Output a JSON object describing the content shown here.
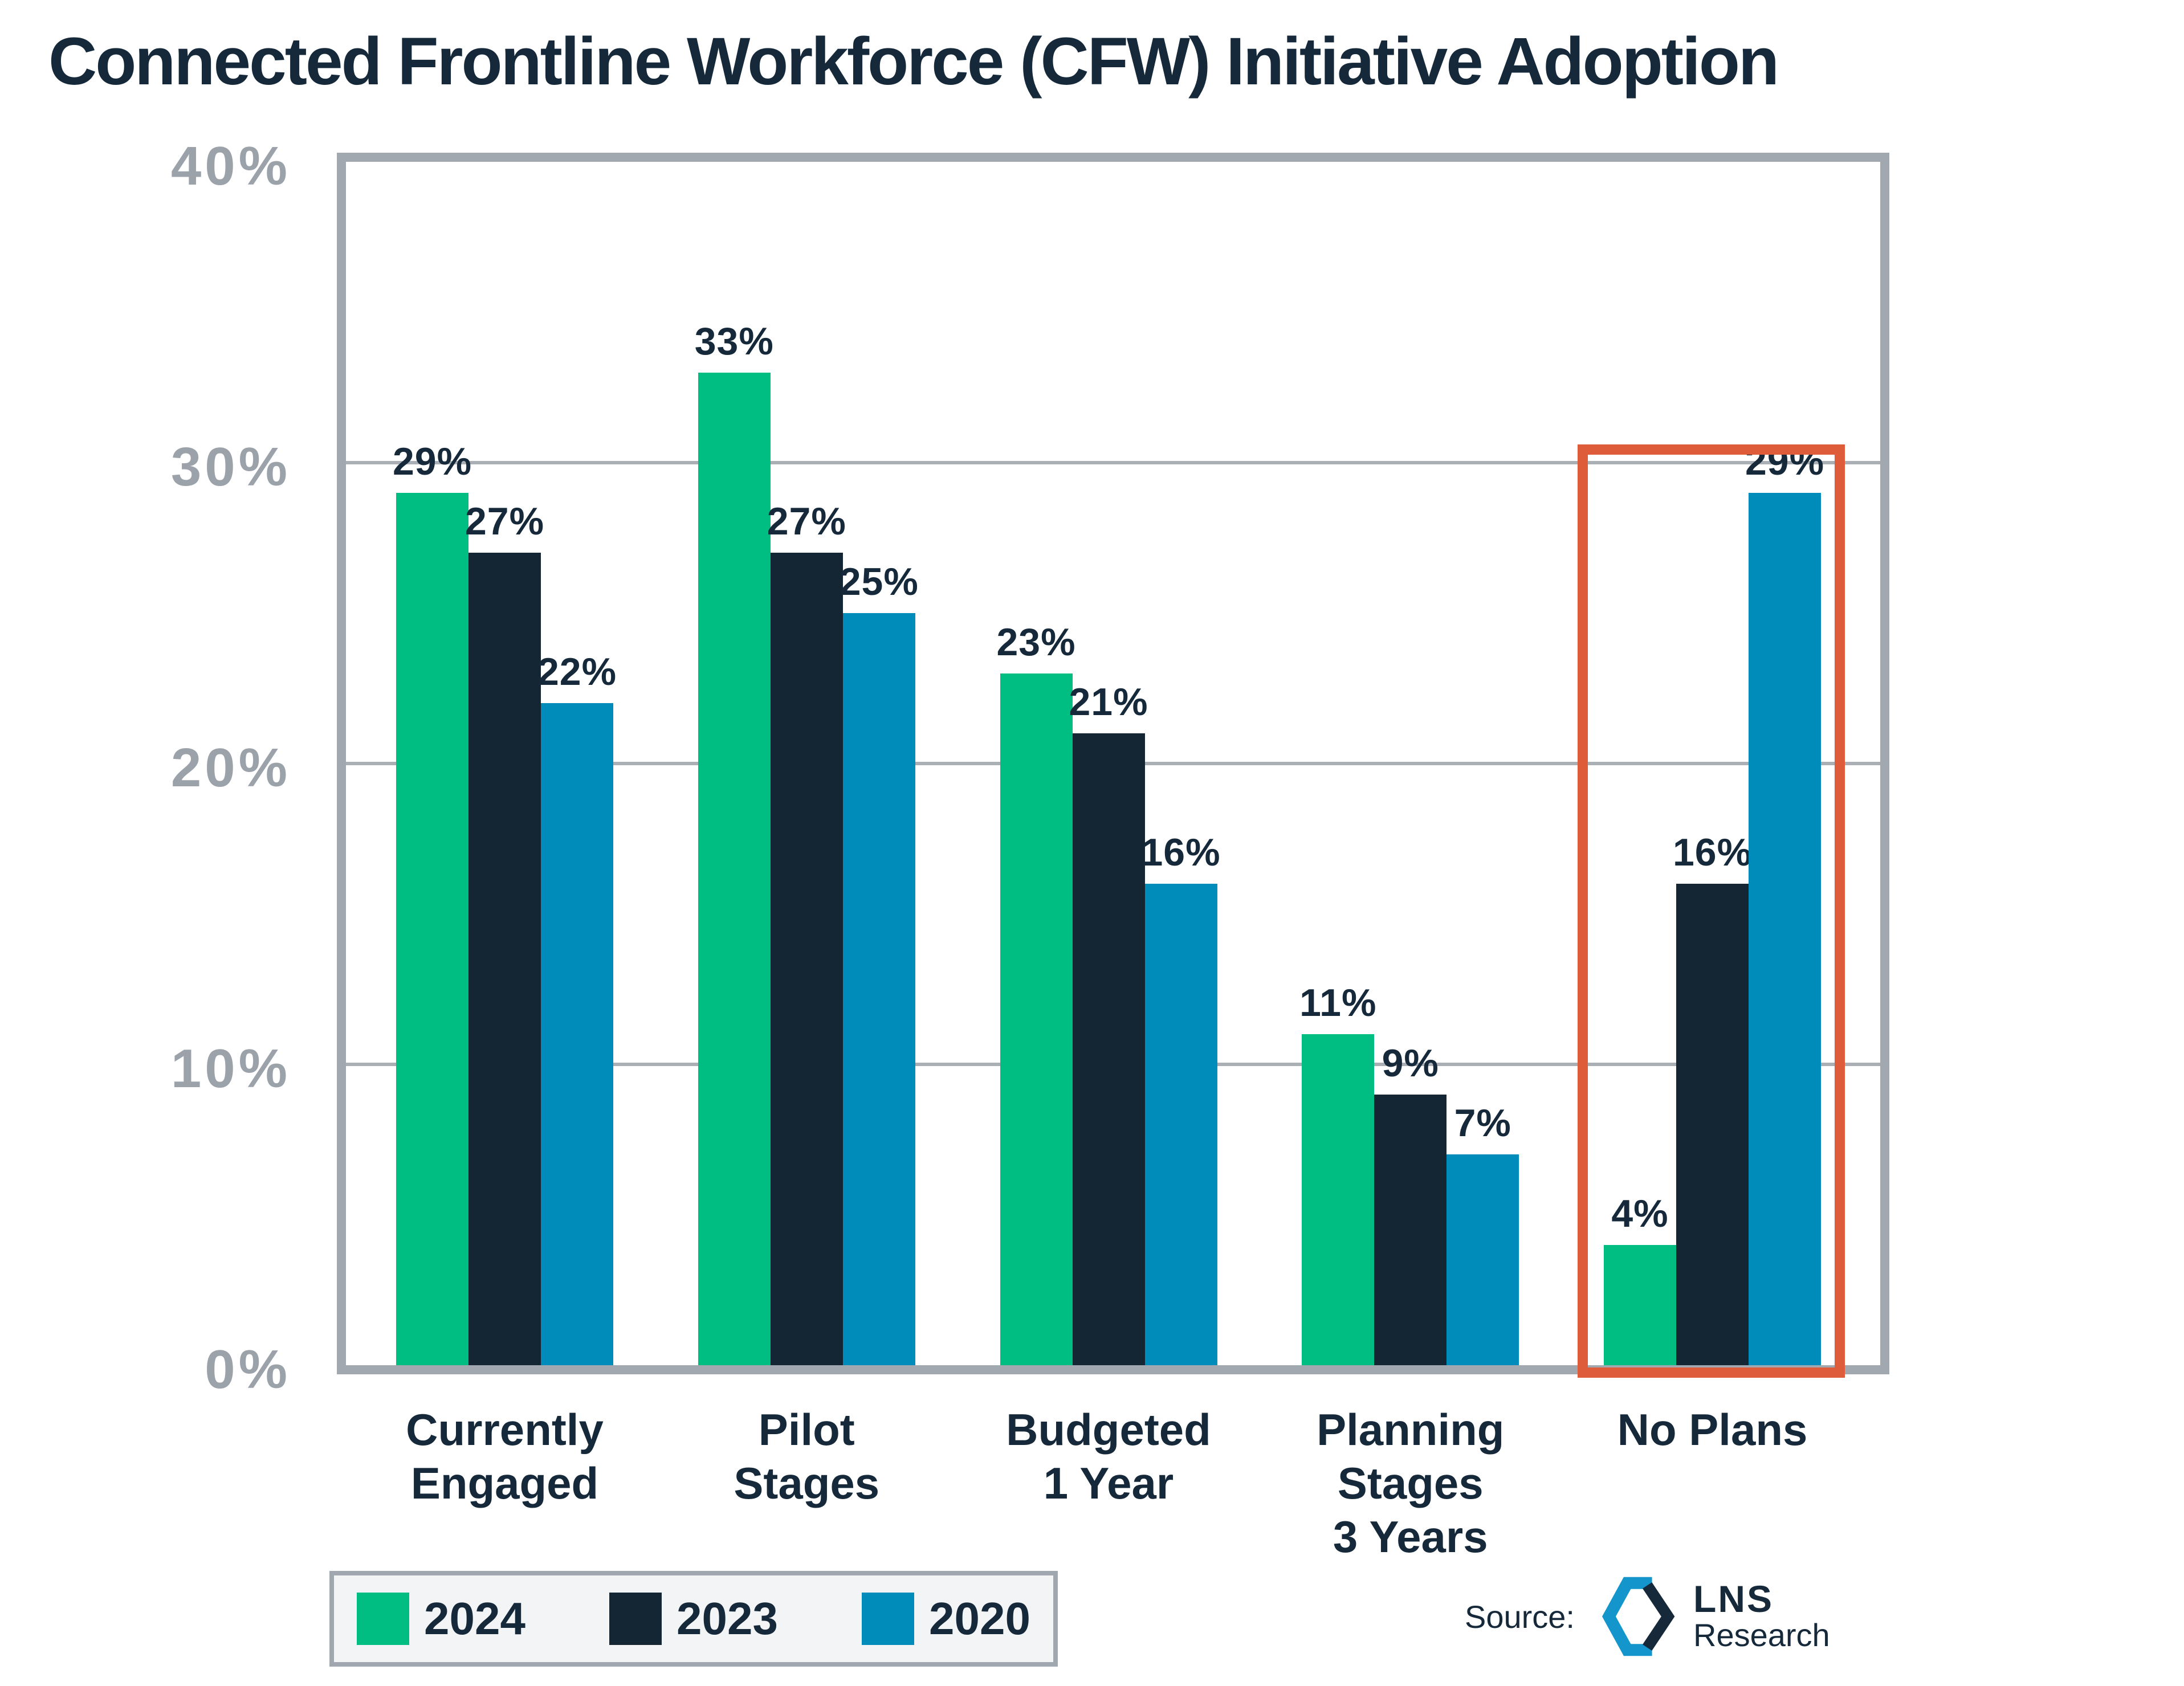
{
  "page": {
    "title": "Connected Frontline Workforce (CFW) Initiative Adoption"
  },
  "chart_data": {
    "type": "bar",
    "title": "Connected Frontline Workforce (CFW) Initiative Adoption",
    "categories": [
      "Currently Engaged",
      "Pilot Stages",
      "Budgeted 1 Year",
      "Planning Stages 3 Years",
      "No Plans"
    ],
    "category_lines": [
      [
        "Currently",
        "Engaged"
      ],
      [
        "Pilot",
        "Stages"
      ],
      [
        "Budgeted",
        "1 Year"
      ],
      [
        "Planning",
        "Stages",
        "3 Years"
      ],
      [
        "No Plans"
      ]
    ],
    "series": [
      {
        "name": "2024",
        "color": "#00BE82",
        "values": [
          29,
          33,
          23,
          11,
          4
        ]
      },
      {
        "name": "2023",
        "color": "#142533",
        "values": [
          27,
          27,
          21,
          9,
          16
        ]
      },
      {
        "name": "2020",
        "color": "#008CBB",
        "values": [
          22,
          25,
          16,
          7,
          29
        ]
      }
    ],
    "value_suffix": "%",
    "xlabel": "",
    "ylabel": "",
    "ylim": [
      0,
      40
    ],
    "ytick_values": [
      0,
      10,
      20,
      30,
      40
    ],
    "ytick_labels": [
      "0%",
      "10%",
      "20%",
      "30%",
      "40%"
    ],
    "grid": true,
    "legend_position": "bottom-left",
    "highlight": {
      "category": "No Plans",
      "category_index": 4,
      "color": "#DF5C3B"
    }
  },
  "legend": {
    "items": [
      {
        "label": "2024",
        "color": "#00BE82"
      },
      {
        "label": "2023",
        "color": "#142533"
      },
      {
        "label": "2020",
        "color": "#008CBB"
      }
    ]
  },
  "source": {
    "label": "Source:",
    "brand_line1": "LNS",
    "brand_line2": "Research",
    "logo": "hexagon-bracket-icon",
    "logo_blue": "#1496CC",
    "logo_navy": "#15293A"
  },
  "colors": {
    "title_text": "#15293A",
    "axis_label": "#9BA2AA",
    "plot_border": "#A2A8AF",
    "gridline": "#A9AFB5",
    "value_label": "#15293A",
    "background": "#FFFFFF",
    "legend_bg": "#F3F4F6",
    "legend_border": "#A0A7AE",
    "highlight": "#DF5C3B"
  }
}
